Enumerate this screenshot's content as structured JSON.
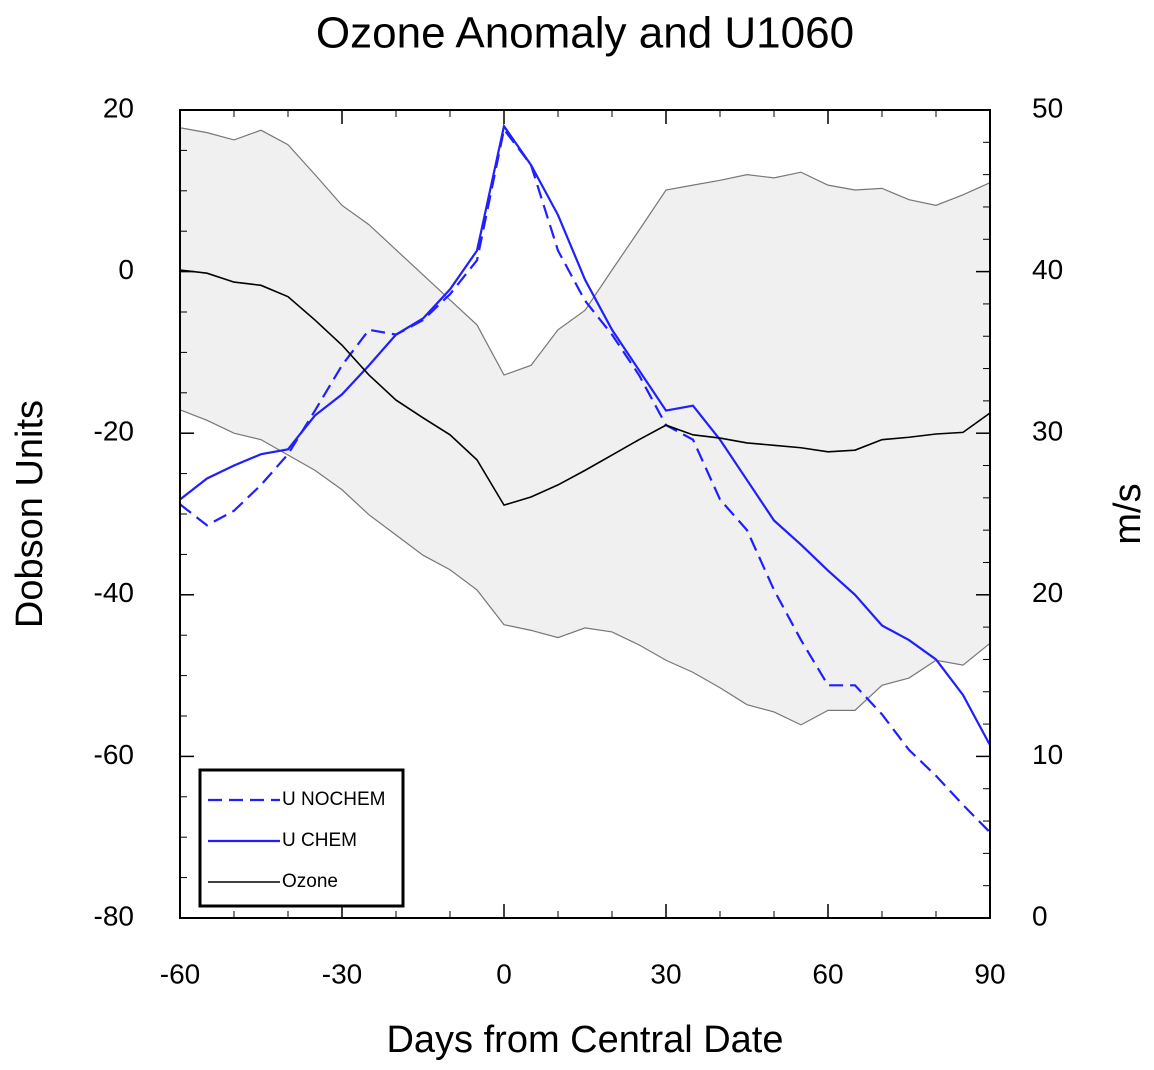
{
  "chart_data": {
    "type": "line",
    "title": "Ozone Anomaly and U1060",
    "xlabel": "Days from Central Date",
    "ylabel": "Dobson Units",
    "y2label": "m/s",
    "x": [
      -60,
      -55,
      -50,
      -45,
      -40,
      -35,
      -30,
      -25,
      -20,
      -15,
      -10,
      -5,
      0,
      5,
      10,
      15,
      20,
      25,
      30,
      35,
      40,
      45,
      50,
      55,
      60,
      65,
      70,
      75,
      80,
      85,
      90
    ],
    "xlim": [
      -60,
      90
    ],
    "xticks": [
      -60,
      -30,
      0,
      30,
      60,
      90
    ],
    "xminorticks": [
      -50,
      -40,
      -20,
      -10,
      10,
      20,
      40,
      50,
      70,
      80
    ],
    "ylim": [
      -80,
      20
    ],
    "yticks": [
      -80,
      -60,
      -40,
      -20,
      0,
      20
    ],
    "yminorticks": [
      -75,
      -70,
      -65,
      -55,
      -50,
      -45,
      -35,
      -30,
      -25,
      -15,
      -10,
      -5,
      5,
      10,
      15
    ],
    "y2lim": [
      0,
      50
    ],
    "y2ticks": [
      0,
      10,
      20,
      30,
      40,
      50
    ],
    "y2minorticks": [
      2,
      4,
      6,
      8,
      12,
      14,
      16,
      18,
      22,
      24,
      26,
      28,
      32,
      34,
      36,
      38,
      42,
      44,
      46,
      48
    ],
    "legend": "lower left",
    "band": {
      "color": "#f0f0f0",
      "edge_color": "#777777",
      "upper": [
        17.8,
        17.2,
        16.3,
        17.5,
        15.7,
        12,
        8.2,
        5.8,
        2.7,
        -0.4,
        -3.5,
        -6.6,
        -12.8,
        -11.6,
        -7.2,
        -4.8,
        0.2,
        5.1,
        10.1,
        10.7,
        11.3,
        12,
        11.6,
        12.3,
        10.7,
        10.1,
        10.3,
        8.9,
        8.2,
        9.5,
        11
      ],
      "lower": [
        -17.1,
        -18.4,
        -20,
        -20.8,
        -22.7,
        -24.6,
        -27,
        -30.1,
        -32.6,
        -35.1,
        -36.9,
        -39.4,
        -43.7,
        -44.4,
        -45.3,
        -44.1,
        -44.6,
        -46.2,
        -48.1,
        -49.6,
        -51.5,
        -53.6,
        -54.5,
        -56.1,
        -54.3,
        -54.3,
        -51.2,
        -50.3,
        -48.1,
        -48.7,
        -46
      ]
    },
    "series": [
      {
        "name": "U NOCHEM",
        "color": "#1f1fff",
        "dash": "dashed",
        "axis": "y2",
        "values": [
          25.6,
          24.3,
          25.2,
          26.8,
          28.7,
          31.4,
          34.2,
          36.4,
          36.1,
          37,
          38.6,
          40.7,
          48.8,
          46.6,
          41.3,
          38.2,
          36.1,
          33.6,
          30.5,
          29.6,
          25.9,
          24,
          20.3,
          17.2,
          14.4,
          14.4,
          12.6,
          10.4,
          8.8,
          7,
          5.3
        ]
      },
      {
        "name": "U CHEM",
        "color": "#1f1fff",
        "dash": "solid",
        "axis": "y2",
        "values": [
          25.9,
          27.2,
          28,
          28.7,
          29,
          31.1,
          32.4,
          34.2,
          36.1,
          37.1,
          38.9,
          41.3,
          49,
          46.6,
          43.5,
          39.5,
          36.4,
          33.9,
          31.4,
          31.7,
          29.6,
          27.1,
          24.6,
          23.1,
          21.5,
          20,
          18.1,
          17.2,
          16,
          13.8,
          10.7
        ]
      },
      {
        "name": "Ozone",
        "color": "#000000",
        "dash": "solid",
        "axis": "y",
        "values": [
          0.2,
          -0.2,
          -1.3,
          -1.7,
          -3.1,
          -6,
          -9.1,
          -12.8,
          -15.9,
          -18.1,
          -20.2,
          -23.3,
          -28.9,
          -27.9,
          -26.4,
          -24.6,
          -22.7,
          -20.8,
          -19,
          -20.2,
          -20.6,
          -21.2,
          -21.5,
          -21.8,
          -22.3,
          -22.1,
          -20.8,
          -20.5,
          -20.1,
          -19.9,
          -17.5
        ]
      }
    ]
  }
}
